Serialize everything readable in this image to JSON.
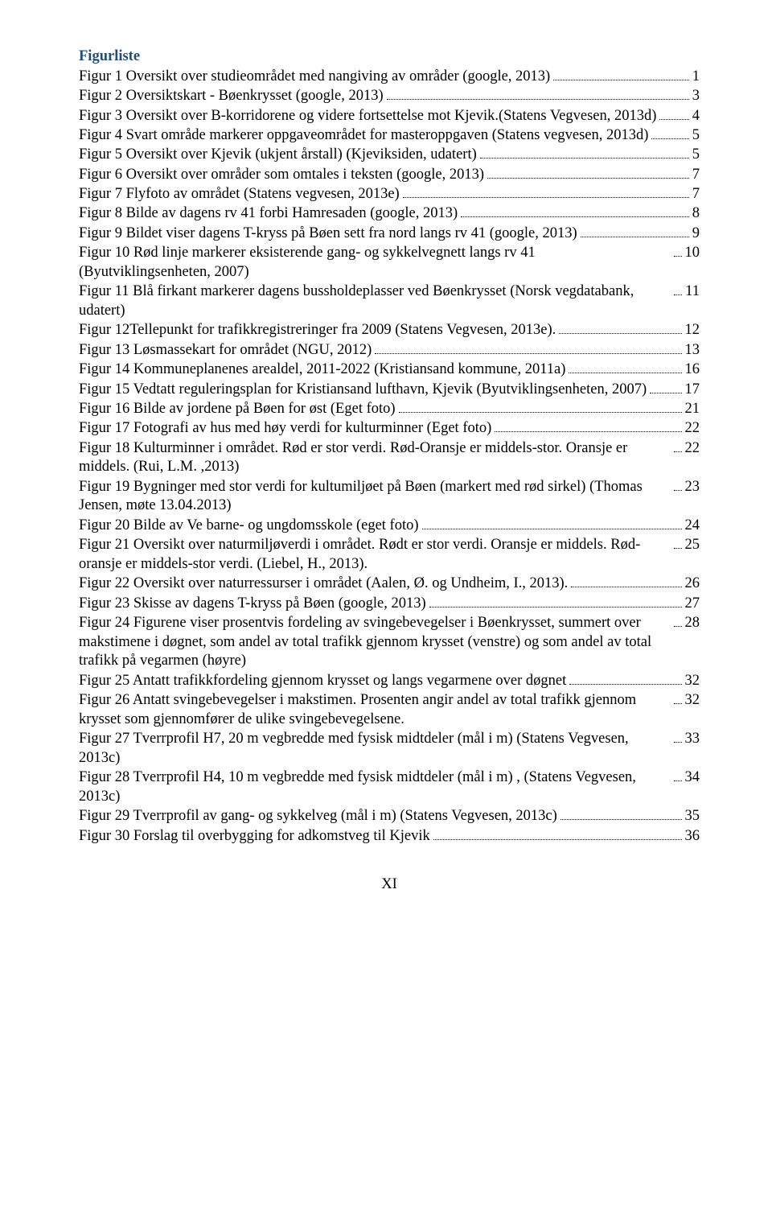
{
  "heading": "Figurliste",
  "footer": "XI",
  "entries": [
    {
      "text": "Figur 1 Oversikt over studieområdet med nangiving av områder (google, 2013)",
      "page": "1"
    },
    {
      "text": "Figur 2 Oversiktskart - Bøenkrysset (google, 2013)",
      "page": "3"
    },
    {
      "text": "Figur 3 Oversikt over B-korridorene og videre fortsettelse mot Kjevik.(Statens Vegvesen, 2013d)",
      "page": "4"
    },
    {
      "text": "Figur 4 Svart område markerer oppgaveområdet for masteroppgaven (Statens vegvesen, 2013d)",
      "page": "5"
    },
    {
      "text": "Figur 5 Oversikt over Kjevik (ukjent årstall) (Kjeviksiden, udatert)",
      "page": "5"
    },
    {
      "text": "Figur 6 Oversikt over områder som omtales i teksten (google, 2013)",
      "page": "7"
    },
    {
      "text": "Figur 7 Flyfoto av området (Statens vegvesen, 2013e)",
      "page": "7"
    },
    {
      "text": "Figur 8 Bilde av dagens rv 41 forbi Hamresaden (google, 2013)",
      "page": "8"
    },
    {
      "text": "Figur 9 Bildet viser dagens T-kryss på Bøen sett fra nord langs rv 41 (google, 2013)",
      "page": "9"
    },
    {
      "text": "Figur 10 Rød linje markerer eksisterende gang- og sykkelvegnett langs rv 41 (Byutviklingsenheten, 2007)",
      "page": "10"
    },
    {
      "text": "Figur 11 Blå firkant markerer dagens bussholdeplasser ved Bøenkrysset (Norsk vegdatabank, udatert)",
      "page": "11"
    },
    {
      "text": "Figur 12Tellepunkt for trafikkregistreringer fra 2009 (Statens Vegvesen, 2013e).",
      "page": "12"
    },
    {
      "text": "Figur 13 Løsmassekart for området (NGU, 2012)",
      "page": "13"
    },
    {
      "text": "Figur 14 Kommuneplanenes arealdel, 2011-2022 (Kristiansand kommune, 2011a)",
      "page": "16"
    },
    {
      "text": "Figur 15 Vedtatt reguleringsplan for Kristiansand lufthavn, Kjevik (Byutviklingsenheten, 2007)",
      "page": "17"
    },
    {
      "text": "Figur 16 Bilde av jordene på Bøen for øst (Eget foto)",
      "page": "21"
    },
    {
      "text": "Figur 17 Fotografi av hus med høy verdi for kulturminner (Eget foto)",
      "page": "22"
    },
    {
      "text": "Figur 18 Kulturminner i området. Rød er stor verdi. Rød-Oransje er middels-stor. Oransje er middels. (Rui, L.M. ,2013)",
      "page": "22"
    },
    {
      "text": "Figur 19 Bygninger med stor verdi for kultumiljøet på Bøen (markert med rød sirkel) (Thomas Jensen, møte 13.04.2013)",
      "page": "23"
    },
    {
      "text": "Figur 20 Bilde av Ve barne- og ungdomsskole (eget foto)",
      "page": "24"
    },
    {
      "text": "Figur 21 Oversikt over naturmiljøverdi i området. Rødt er stor verdi. Oransje er middels. Rød-oransje er middels-stor verdi.  (Liebel, H., 2013).",
      "page": "25"
    },
    {
      "text": "Figur 22 Oversikt over naturressurser i området (Aalen, Ø. og Undheim, I., 2013).",
      "page": "26"
    },
    {
      "text": "Figur 23 Skisse av dagens T-kryss på Bøen (google, 2013)",
      "page": "27"
    },
    {
      "text": "Figur 24 Figurene viser prosentvis fordeling av svingebevegelser i Bøenkrysset, summert over makstimene i døgnet, som andel av total trafikk gjennom krysset (venstre) og som andel av total trafikk på vegarmen (høyre)",
      "page": "28"
    },
    {
      "text": "Figur 25 Antatt trafikkfordeling gjennom krysset og langs vegarmene over døgnet",
      "page": "32"
    },
    {
      "text": "Figur 26 Antatt svingebevegelser i makstimen. Prosenten angir andel av total trafikk gjennom krysset som gjennomfører de ulike svingebevegelsene.",
      "page": "32"
    },
    {
      "text": "Figur 27 Tverrprofil H7, 20 m vegbredde med fysisk midtdeler (mål i m) (Statens Vegvesen, 2013c)",
      "page": "33"
    },
    {
      "text": "Figur 28 Tverrprofil H4, 10 m vegbredde med fysisk midtdeler (mål i m) , (Statens Vegvesen, 2013c)",
      "page": "34"
    },
    {
      "text": "Figur 29 Tverrprofil av gang- og sykkelveg (mål i m) (Statens Vegvesen, 2013c)",
      "page": "35"
    },
    {
      "text": "Figur 30 Forslag til overbygging for adkomstveg til Kjevik",
      "page": "36"
    }
  ]
}
